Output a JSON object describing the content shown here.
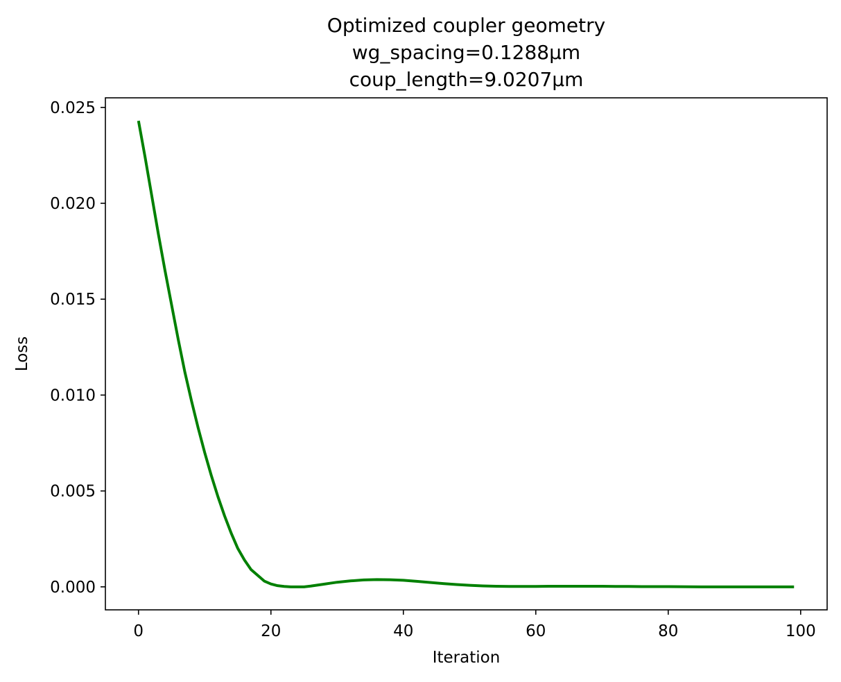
{
  "chart_data": {
    "type": "line",
    "title_lines": [
      "Optimized coupler geometry",
      "wg_spacing=0.1288μm",
      "coup_length=9.0207μm"
    ],
    "xlabel": "Iteration",
    "ylabel": "Loss",
    "xlim": [
      -5,
      104
    ],
    "ylim": [
      -0.0012,
      0.0255
    ],
    "xticks": [
      0,
      20,
      40,
      60,
      80,
      100
    ],
    "xtick_labels": [
      "0",
      "20",
      "40",
      "60",
      "80",
      "100"
    ],
    "yticks": [
      0.0,
      0.005,
      0.01,
      0.015,
      0.02,
      0.025
    ],
    "ytick_labels": [
      "0.000",
      "0.005",
      "0.010",
      "0.015",
      "0.020",
      "0.025"
    ],
    "grid": false,
    "series": [
      {
        "color": "#008000",
        "x": [
          0,
          1,
          2,
          3,
          4,
          5,
          6,
          7,
          8,
          9,
          10,
          11,
          12,
          13,
          14,
          15,
          16,
          17,
          18,
          19,
          20,
          21,
          22,
          23,
          24,
          25,
          26,
          27,
          28,
          29,
          30,
          32,
          34,
          36,
          38,
          40,
          42,
          44,
          46,
          48,
          50,
          52,
          54,
          56,
          58,
          60,
          62,
          64,
          66,
          68,
          70,
          72,
          74,
          76,
          78,
          80,
          85,
          90,
          95,
          99
        ],
        "y": [
          0.0243,
          0.0224,
          0.0204,
          0.0184,
          0.0165,
          0.0147,
          0.0129,
          0.0112,
          0.0097,
          0.0083,
          0.007,
          0.0058,
          0.0047,
          0.0037,
          0.0028,
          0.002,
          0.0014,
          0.0009,
          0.0006,
          0.0003,
          0.00015,
          6e-05,
          2e-05,
          0.0,
          0.0,
          0.0,
          4e-05,
          9e-05,
          0.00014,
          0.00019,
          0.00024,
          0.00031,
          0.00036,
          0.00038,
          0.00037,
          0.00034,
          0.00029,
          0.00023,
          0.00017,
          0.00012,
          8e-05,
          5e-05,
          3e-05,
          2e-05,
          2e-05,
          2e-05,
          3e-05,
          3e-05,
          3e-05,
          3e-05,
          3e-05,
          2e-05,
          2e-05,
          1e-05,
          1e-05,
          1e-05,
          0.0,
          0.0,
          0.0,
          0.0
        ]
      }
    ]
  }
}
